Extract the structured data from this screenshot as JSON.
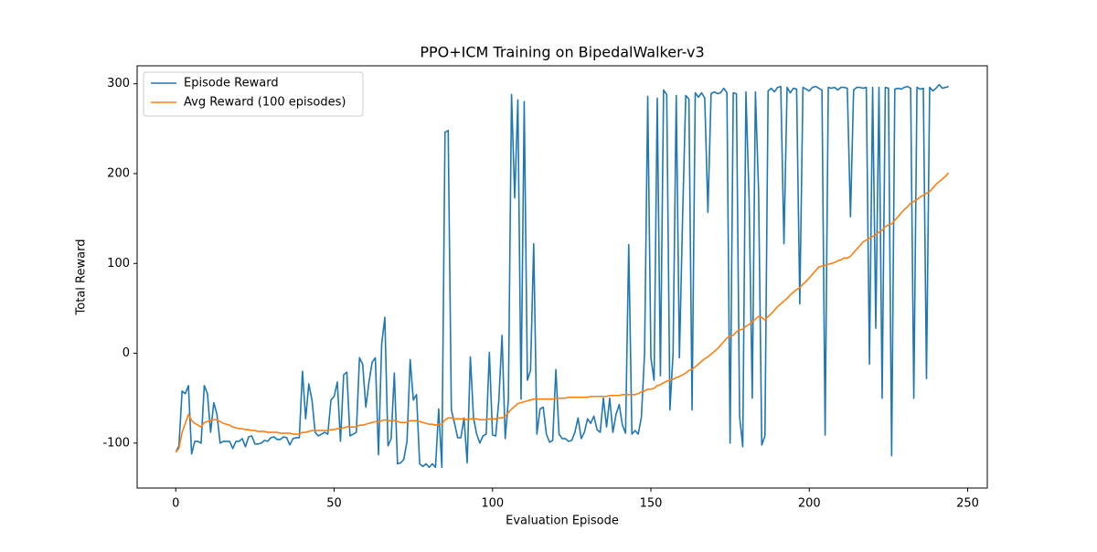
{
  "chart_data": {
    "type": "line",
    "title": "PPO+ICM Training on BipedalWalker-v3",
    "x_label": "Evaluation Episode",
    "y_label": "Total Reward",
    "x": [
      0,
      1,
      2,
      3,
      4,
      5,
      6,
      7,
      8,
      9,
      10,
      11,
      12,
      13,
      14,
      15,
      16,
      17,
      18,
      19,
      20,
      21,
      22,
      23,
      24,
      25,
      26,
      27,
      28,
      29,
      30,
      31,
      32,
      33,
      34,
      35,
      36,
      37,
      38,
      39,
      40,
      41,
      42,
      43,
      44,
      45,
      46,
      47,
      48,
      49,
      50,
      51,
      52,
      53,
      54,
      55,
      56,
      57,
      58,
      59,
      60,
      61,
      62,
      63,
      64,
      65,
      66,
      67,
      68,
      69,
      70,
      71,
      72,
      73,
      74,
      75,
      76,
      77,
      78,
      79,
      80,
      81,
      82,
      83,
      84,
      85,
      86,
      87,
      88,
      89,
      90,
      91,
      92,
      93,
      94,
      95,
      96,
      97,
      98,
      99,
      100,
      101,
      102,
      103,
      104,
      105,
      106,
      107,
      108,
      109,
      110,
      111,
      112,
      113,
      114,
      115,
      116,
      117,
      118,
      119,
      120,
      121,
      122,
      123,
      124,
      125,
      126,
      127,
      128,
      129,
      130,
      131,
      132,
      133,
      134,
      135,
      136,
      137,
      138,
      139,
      140,
      141,
      142,
      143,
      144,
      145,
      146,
      147,
      148,
      149,
      150,
      151,
      152,
      153,
      154,
      155,
      156,
      157,
      158,
      159,
      160,
      161,
      162,
      163,
      164,
      165,
      166,
      167,
      168,
      169,
      170,
      171,
      172,
      173,
      174,
      175,
      176,
      177,
      178,
      179,
      180,
      181,
      182,
      183,
      184,
      185,
      186,
      187,
      188,
      189,
      190,
      191,
      192,
      193,
      194,
      195,
      196,
      197,
      198,
      199,
      200,
      201,
      202,
      203,
      204,
      205,
      206,
      207,
      208,
      209,
      210,
      211,
      212,
      213,
      214,
      215,
      216,
      217,
      218,
      219,
      220,
      221,
      222,
      223,
      224,
      225,
      226,
      227,
      228,
      229,
      230,
      231,
      232,
      233,
      234,
      235,
      236,
      237,
      238,
      239,
      240,
      241,
      242,
      243,
      244
    ],
    "series": [
      {
        "name": "Episode Reward",
        "color": "#1f77b4",
        "values": [
          -110,
          -103,
          -42,
          -45,
          -36,
          -112,
          -98,
          -98,
          -100,
          -36,
          -45,
          -88,
          -55,
          -68,
          -100,
          -98,
          -98,
          -98,
          -106,
          -98,
          -98,
          -95,
          -104,
          -93,
          -92,
          -101,
          -101,
          -100,
          -97,
          -98,
          -94,
          -93,
          -96,
          -96,
          -93,
          -94,
          -102,
          -95,
          -94,
          -94,
          -20,
          -73,
          -34,
          -52,
          -88,
          -92,
          -90,
          -88,
          -90,
          -52,
          -48,
          -32,
          -98,
          -24,
          -21,
          -92,
          -90,
          -88,
          -5,
          -12,
          -60,
          -32,
          -10,
          -5,
          -113,
          10,
          40,
          -103,
          -95,
          -22,
          -123,
          -122,
          -118,
          -98,
          -7,
          -52,
          -46,
          -123,
          -126,
          -123,
          -127,
          -123,
          -127,
          -62,
          -127,
          246,
          248,
          -63,
          -78,
          -94,
          -94,
          -72,
          -122,
          -4,
          -72,
          -90,
          -100,
          -92,
          -90,
          1,
          -91,
          -92,
          -52,
          20,
          -95,
          -52,
          288,
          173,
          282,
          -51,
          280,
          -30,
          -19,
          122,
          -90,
          -62,
          -60,
          -90,
          -99,
          -97,
          -18,
          -90,
          -95,
          -95,
          -98,
          -97,
          -88,
          -72,
          -95,
          -88,
          -73,
          -78,
          -70,
          -85,
          -88,
          -50,
          -82,
          -50,
          -88,
          -68,
          -57,
          -80,
          -89,
          121,
          -90,
          -86,
          -90,
          -71,
          0,
          286,
          -5,
          -30,
          284,
          -25,
          293,
          288,
          -63,
          0,
          287,
          -5,
          150,
          287,
          283,
          -63,
          290,
          285,
          290,
          284,
          157,
          289,
          291,
          289,
          290,
          295,
          290,
          -100,
          290,
          289,
          -70,
          -104,
          291,
          172,
          -50,
          291,
          180,
          -102,
          -92,
          292,
          295,
          291,
          296,
          297,
          122,
          296,
          290,
          295,
          294,
          55,
          296,
          294,
          292,
          296,
          297,
          295,
          293,
          -91,
          296,
          295,
          296,
          293,
          296,
          296,
          295,
          152,
          293,
          296,
          296,
          295,
          296,
          -12,
          296,
          28,
          296,
          -50,
          296,
          295,
          -114,
          294,
          295,
          294,
          296,
          297,
          295,
          -50,
          296,
          294,
          295,
          -28,
          296,
          292,
          295,
          299,
          295,
          296,
          297
        ]
      },
      {
        "name": "Avg Reward (100 episodes)",
        "color": "#ff7f0e",
        "values": [
          -110,
          -106,
          -88,
          -78,
          -68,
          -75,
          -78,
          -80,
          -82,
          -77,
          -76,
          -75,
          -74,
          -74,
          -76,
          -78,
          -79,
          -80,
          -82,
          -83,
          -84,
          -84,
          -85,
          -85,
          -86,
          -86,
          -87,
          -87,
          -87,
          -88,
          -88,
          -88,
          -88,
          -89,
          -89,
          -89,
          -89,
          -90,
          -90,
          -90,
          -88,
          -88,
          -87,
          -86,
          -86,
          -86,
          -86,
          -86,
          -86,
          -85,
          -85,
          -84,
          -84,
          -83,
          -82,
          -82,
          -82,
          -82,
          -80,
          -80,
          -79,
          -78,
          -77,
          -76,
          -77,
          -75,
          -74,
          -75,
          -75,
          -75,
          -76,
          -77,
          -77,
          -77,
          -75,
          -75,
          -75,
          -76,
          -77,
          -78,
          -79,
          -79,
          -80,
          -79,
          -79,
          -74,
          -72,
          -72,
          -73,
          -73,
          -73,
          -73,
          -74,
          -73,
          -73,
          -73,
          -74,
          -74,
          -74,
          -73,
          -73,
          -73,
          -72,
          -72,
          -70,
          -66,
          -62,
          -59,
          -56,
          -55,
          -54,
          -53,
          -52,
          -51,
          -51,
          -51,
          -51,
          -51,
          -51,
          -51,
          -50,
          -50,
          -50,
          -50,
          -49,
          -49,
          -49,
          -49,
          -49,
          -49,
          -49,
          -48,
          -48,
          -48,
          -48,
          -48,
          -48,
          -47,
          -47,
          -47,
          -47,
          -46,
          -46,
          -46,
          -46,
          -46,
          -45,
          -43,
          -42,
          -40,
          -40,
          -39,
          -36,
          -35,
          -33,
          -31,
          -30,
          -29,
          -27,
          -26,
          -24,
          -22,
          -19,
          -18,
          -15,
          -12,
          -9,
          -6,
          -4,
          -1,
          2,
          5,
          9,
          13,
          17,
          19,
          20,
          24,
          26,
          27,
          30,
          32,
          35,
          38,
          41,
          40,
          37,
          41,
          44,
          48,
          52,
          55,
          58,
          61,
          65,
          68,
          71,
          73,
          77,
          80,
          84,
          88,
          92,
          96,
          97,
          98,
          99,
          100,
          101,
          103,
          104,
          106,
          106,
          108,
          112,
          116,
          120,
          124,
          126,
          128,
          130,
          132,
          135,
          137,
          141,
          143,
          144,
          148,
          152,
          156,
          160,
          163,
          167,
          169,
          171,
          174,
          176,
          178,
          180,
          184,
          188,
          191,
          194,
          197,
          201
        ]
      }
    ],
    "xlim": [
      -12.2,
      256.2
    ],
    "ylim": [
      -150,
      320
    ],
    "xticks": [
      0,
      50,
      100,
      150,
      200,
      250
    ],
    "yticks": [
      -100,
      0,
      100,
      200,
      300
    ],
    "legend": "upper left"
  }
}
